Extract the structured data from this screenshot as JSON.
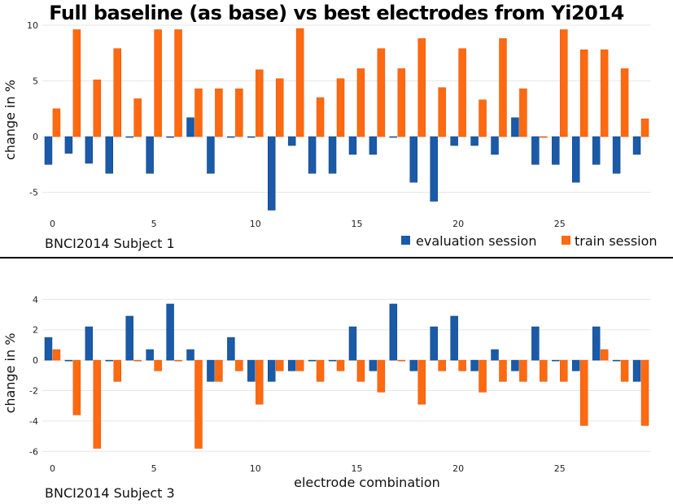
{
  "title": "Full baseline (as base) vs best electrodes from Yi2014",
  "colors": {
    "evaluation": "#1a5aa8",
    "train": "#ff6a10",
    "divider": "#000000"
  },
  "legend": {
    "evaluation": "evaluation session",
    "train": "train session",
    "placement": "bottom-right of top panel"
  },
  "chart_data": [
    {
      "type": "bar",
      "panel_label": "BNCI2014 Subject 1",
      "ylabel": "change in %",
      "xlabel": "",
      "x_ticks": [
        "0",
        "5",
        "10",
        "15",
        "20",
        "25"
      ],
      "y_ticks": [
        "-5",
        "0",
        "5",
        "10"
      ],
      "ylim": [
        -7,
        10
      ],
      "xlim": [
        -0.5,
        29.5
      ],
      "grid": true,
      "x": [
        0,
        1,
        2,
        3,
        4,
        5,
        6,
        7,
        8,
        9,
        10,
        11,
        12,
        13,
        14,
        15,
        16,
        17,
        18,
        19,
        20,
        21,
        22,
        23,
        24,
        25,
        26,
        27,
        28,
        29
      ],
      "series": [
        {
          "name": "evaluation session",
          "values": [
            -2.5,
            -1.5,
            -2.4,
            -3.3,
            0,
            -3.3,
            0,
            1.7,
            -3.3,
            0,
            0,
            -6.6,
            -0.8,
            -3.3,
            -3.3,
            -1.6,
            -1.6,
            0,
            -4.1,
            -5.8,
            -0.8,
            -0.8,
            -1.6,
            1.7,
            -2.5,
            -2.5,
            -4.1,
            -2.5,
            -3.3,
            -1.6
          ]
        },
        {
          "name": "train session",
          "values": [
            2.5,
            9.6,
            5.1,
            7.9,
            3.4,
            9.6,
            9.6,
            4.3,
            4.3,
            4.3,
            6.0,
            5.2,
            9.7,
            3.5,
            5.2,
            6.1,
            7.9,
            6.1,
            8.8,
            4.4,
            7.9,
            3.3,
            8.8,
            4.3,
            0,
            9.6,
            7.8,
            7.8,
            6.1,
            1.6
          ]
        }
      ]
    },
    {
      "type": "bar",
      "panel_label": "BNCI2014 Subject 3",
      "ylabel": "change in %",
      "xlabel": "electrode combination",
      "x_ticks": [
        "0",
        "5",
        "10",
        "15",
        "20",
        "25"
      ],
      "y_ticks": [
        "-6",
        "-4",
        "-2",
        "0",
        "2",
        "4"
      ],
      "ylim": [
        -6.2,
        4.5
      ],
      "xlim": [
        -0.5,
        29.5
      ],
      "grid": true,
      "x": [
        0,
        1,
        2,
        3,
        4,
        5,
        6,
        7,
        8,
        9,
        10,
        11,
        12,
        13,
        14,
        15,
        16,
        17,
        18,
        19,
        20,
        21,
        22,
        23,
        24,
        25,
        26,
        27,
        28,
        29
      ],
      "series": [
        {
          "name": "evaluation session",
          "values": [
            1.5,
            0,
            2.2,
            0,
            2.9,
            0.7,
            3.7,
            0.7,
            -1.4,
            1.5,
            -1.4,
            -1.4,
            -0.7,
            0,
            0,
            2.2,
            -0.7,
            3.7,
            -0.7,
            2.2,
            2.9,
            -0.7,
            0.7,
            -0.7,
            2.2,
            0,
            -0.7,
            2.2,
            0,
            -1.4
          ]
        },
        {
          "name": "train session",
          "values": [
            0.7,
            -3.6,
            -5.8,
            -1.4,
            0,
            -0.7,
            0,
            -5.8,
            -1.4,
            -0.7,
            -2.9,
            -0.7,
            -0.7,
            -1.4,
            -0.7,
            -1.4,
            -2.1,
            0,
            -2.9,
            -0.7,
            -0.7,
            -2.1,
            -1.4,
            -1.4,
            -1.4,
            -1.4,
            -4.3,
            0.7,
            -1.4,
            -4.3
          ]
        }
      ]
    }
  ]
}
